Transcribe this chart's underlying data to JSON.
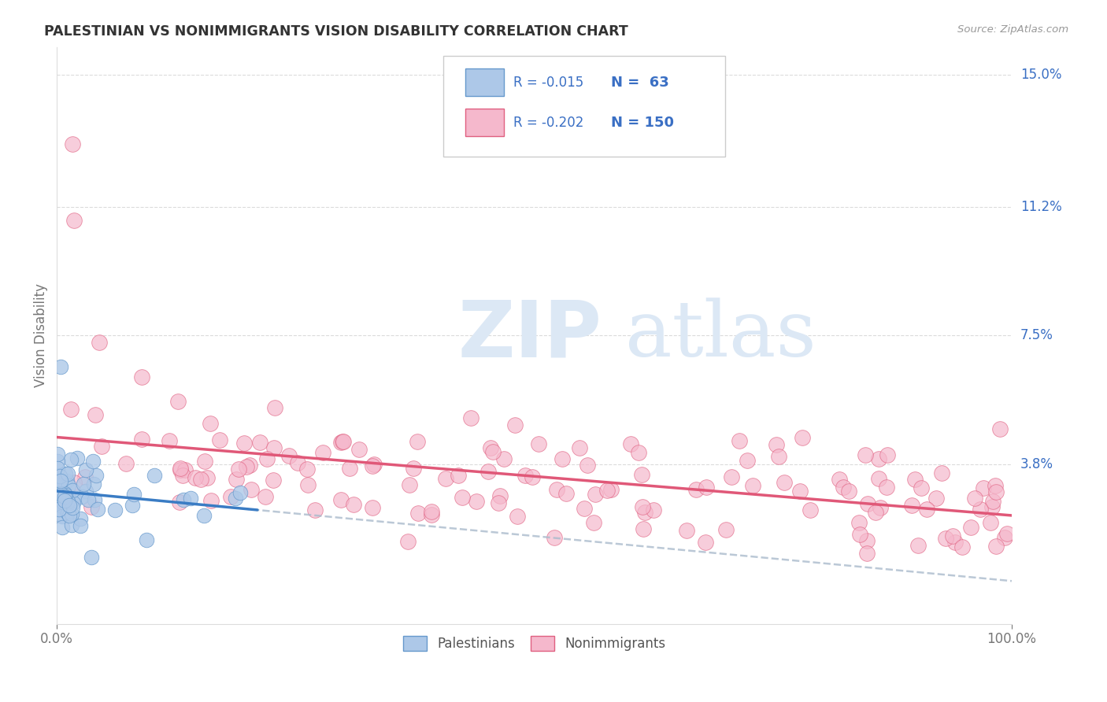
{
  "title": "PALESTINIAN VS NONIMMIGRANTS VISION DISABILITY CORRELATION CHART",
  "source": "Source: ZipAtlas.com",
  "ylabel": "Vision Disability",
  "xlim": [
    0,
    1
  ],
  "ylim": [
    -0.008,
    0.158
  ],
  "background_color": "#ffffff",
  "grid_color": "#cccccc",
  "palestinians_color": "#adc8e8",
  "nonimmigrants_color": "#f5b8cc",
  "palestinians_edge": "#6699cc",
  "nonimmigrants_edge": "#e06080",
  "trend_palestinians_color": "#3a7cc4",
  "trend_nonimmigrants_color": "#e05878",
  "trend_dashed_color": "#aabbcc",
  "legend_text_color": "#3a6fc4",
  "r_palestinians": "-0.015",
  "n_palestinians": " 63",
  "r_nonimmigrants": "-0.202",
  "n_nonimmigrants": "150",
  "watermark_zip": "ZIP",
  "watermark_atlas": "atlas",
  "ytick_positions": [
    0.038,
    0.075,
    0.112,
    0.15
  ],
  "ytick_labels": [
    "3.8%",
    "7.5%",
    "11.2%",
    "15.0%"
  ],
  "xtick_positions": [
    0.0,
    1.0
  ],
  "xtick_labels": [
    "0.0%",
    "100.0%"
  ]
}
